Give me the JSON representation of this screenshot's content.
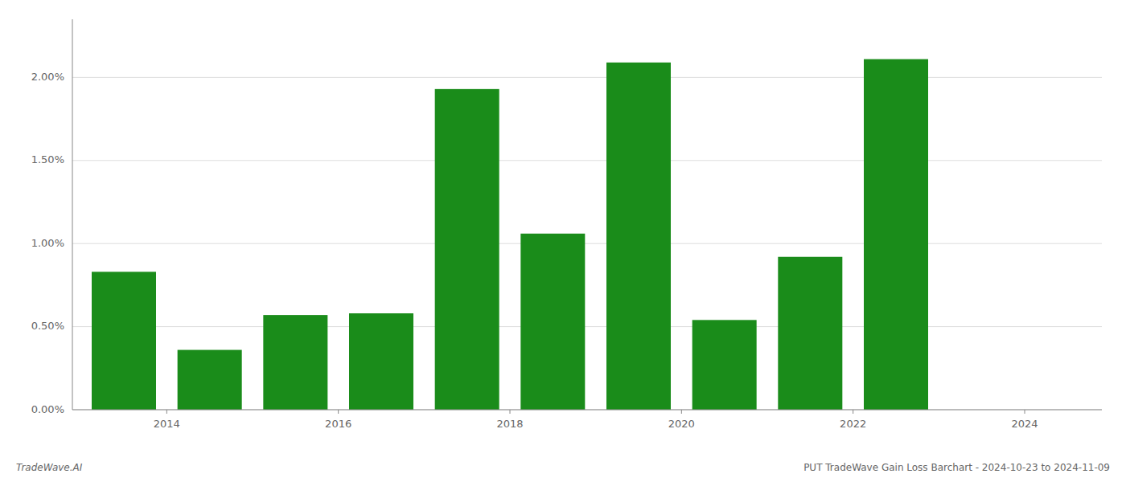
{
  "chart_data": {
    "type": "bar",
    "x": [
      2013,
      2014,
      2015,
      2016,
      2017,
      2018,
      2019,
      2020,
      2021,
      2022,
      2023
    ],
    "values": [
      0.0083,
      0.0036,
      0.0057,
      0.0058,
      0.0193,
      0.0106,
      0.0209,
      0.0054,
      0.0092,
      0.0211,
      0.0
    ],
    "color": "#1a8c1a",
    "xlim": [
      2012.4,
      2024.4
    ],
    "xticks": [
      {
        "value": 2013.5,
        "label": "2014"
      },
      {
        "value": 2015.5,
        "label": "2016"
      },
      {
        "value": 2017.5,
        "label": "2018"
      },
      {
        "value": 2019.5,
        "label": "2020"
      },
      {
        "value": 2021.5,
        "label": "2022"
      },
      {
        "value": 2023.5,
        "label": "2024"
      }
    ],
    "ylim": [
      0,
      0.0235
    ],
    "yticks": [
      {
        "value": 0.0,
        "label": "0.00%"
      },
      {
        "value": 0.005,
        "label": "0.50%"
      },
      {
        "value": 0.01,
        "label": "1.00%"
      },
      {
        "value": 0.015,
        "label": "1.50%"
      },
      {
        "value": 0.02,
        "label": "2.00%"
      }
    ],
    "grid": true,
    "annotations": [
      "TradeWave.AI",
      "PUT TradeWave Gain Loss Barchart - 2024-10-23 to 2024-11-09"
    ]
  }
}
